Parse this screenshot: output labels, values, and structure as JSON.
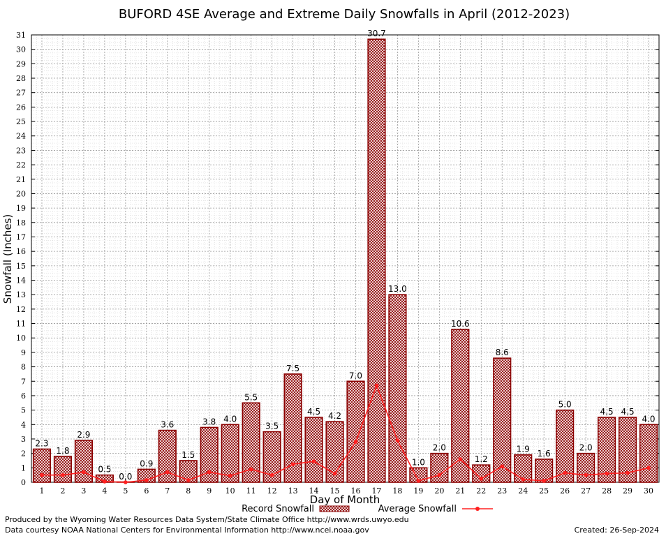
{
  "chart_data": {
    "type": "bar",
    "title": "BUFORD 4SE Average and Extreme Daily Snowfalls in April (2012-2023)",
    "xlabel": "Day of Month",
    "ylabel": "Snowfall (Inches)",
    "ylim": [
      0,
      31
    ],
    "grid": true,
    "legend_position": "bottom",
    "categories": [
      "1",
      "2",
      "3",
      "4",
      "5",
      "6",
      "7",
      "8",
      "9",
      "10",
      "11",
      "12",
      "13",
      "14",
      "15",
      "16",
      "17",
      "18",
      "19",
      "20",
      "21",
      "22",
      "23",
      "24",
      "25",
      "26",
      "27",
      "28",
      "29",
      "30"
    ],
    "y_ticks": [
      "0",
      "1",
      "2",
      "3",
      "4",
      "5",
      "6",
      "7",
      "8",
      "9",
      "10",
      "11",
      "12",
      "13",
      "14",
      "15",
      "16",
      "17",
      "18",
      "19",
      "20",
      "21",
      "22",
      "23",
      "24",
      "25",
      "26",
      "27",
      "28",
      "29",
      "30",
      "31"
    ],
    "series": [
      {
        "name": "Record Snowfall",
        "type": "bar",
        "color": "#8b0000",
        "values": [
          2.3,
          1.8,
          2.9,
          0.5,
          0.0,
          0.9,
          3.6,
          1.5,
          3.8,
          4.0,
          5.5,
          3.5,
          7.5,
          4.5,
          4.2,
          7.0,
          30.7,
          13.0,
          1.0,
          2.0,
          10.6,
          1.2,
          8.6,
          1.9,
          1.6,
          5.0,
          2.0,
          4.5,
          4.5,
          4.0
        ],
        "labels": [
          "2.3",
          "1.8",
          "2.9",
          "0.5",
          "0.0",
          "0.9",
          "3.6",
          "1.5",
          "3.8",
          "4.0",
          "5.5",
          "3.5",
          "7.5",
          "4.5",
          "4.2",
          "7.0",
          "30.7",
          "13.0",
          "1.0",
          "2.0",
          "10.6",
          "1.2",
          "8.6",
          "1.9",
          "1.6",
          "5.0",
          "2.0",
          "4.5",
          "4.5",
          "4.0"
        ]
      },
      {
        "name": "Average Snowfall",
        "type": "line",
        "color": "#ff2020",
        "values": [
          0.5,
          0.5,
          0.7,
          0.05,
          0.0,
          0.15,
          0.7,
          0.15,
          0.7,
          0.45,
          0.9,
          0.5,
          1.25,
          1.45,
          0.6,
          2.8,
          6.7,
          2.9,
          0.1,
          0.5,
          1.6,
          0.25,
          1.1,
          0.2,
          0.1,
          0.65,
          0.5,
          0.6,
          0.65,
          1.0
        ]
      }
    ]
  },
  "footer": {
    "left_line1": "Produced by the Wyoming Water Resources Data System/State Climate Office http://www.wrds.uwyo.edu",
    "left_line2": "Data courtesy NOAA National Centers for Environmental Information http://www.ncei.noaa.gov",
    "created": "Created:  26-Sep-2024"
  }
}
